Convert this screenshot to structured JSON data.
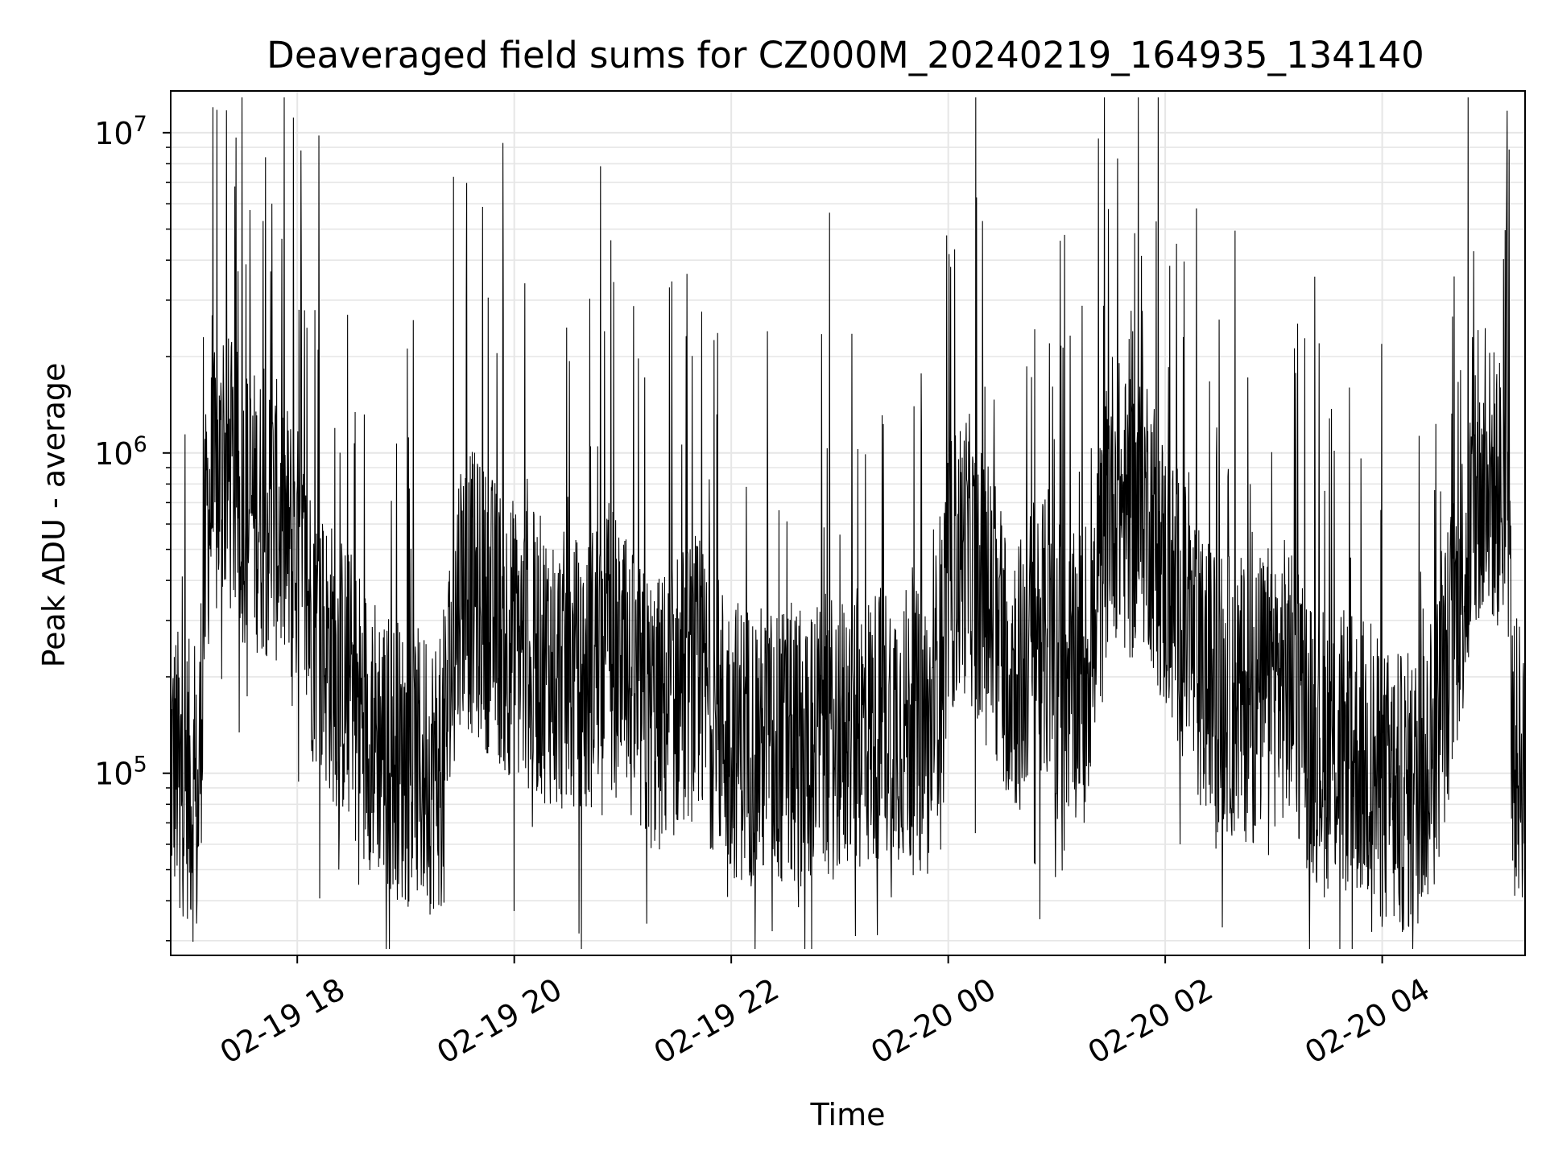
{
  "chart_data": {
    "type": "line",
    "title": "Deaveraged field sums for CZ000M_20240219_164935_134140",
    "xlabel": "Time",
    "ylabel": "Peak ADU - average",
    "y_scale": "log",
    "xlim": [
      "2024-02-19T16:50",
      "2024-02-20T05:19"
    ],
    "ylim": [
      27000,
      13500000
    ],
    "grid": true,
    "legend": "none",
    "line_color": "#000000",
    "grid_color": "#e6e6e6",
    "x_ticks": [
      {
        "value": "2024-02-19T18:00",
        "label": "02-19 18"
      },
      {
        "value": "2024-02-19T20:00",
        "label": "02-19 20"
      },
      {
        "value": "2024-02-19T22:00",
        "label": "02-19 22"
      },
      {
        "value": "2024-02-20T00:00",
        "label": "02-20 00"
      },
      {
        "value": "2024-02-20T02:00",
        "label": "02-20 02"
      },
      {
        "value": "2024-02-20T04:00",
        "label": "02-20 04"
      }
    ],
    "y_ticks": [
      {
        "value": 100000,
        "base": "10",
        "exp": "5"
      },
      {
        "value": 1000000,
        "base": "10",
        "exp": "6"
      },
      {
        "value": 10000000,
        "base": "10",
        "exp": "7"
      }
    ],
    "series": [
      {
        "points": [
          [
            "2024-02-19T16:50",
            110000
          ],
          [
            "2024-02-19T17:00",
            95000
          ],
          [
            "2024-02-19T17:05",
            70000
          ],
          [
            "2024-02-19T17:10",
            650000
          ],
          [
            "2024-02-19T17:20",
            900000
          ],
          [
            "2024-02-19T17:30",
            700000
          ],
          [
            "2024-02-19T17:40",
            650000
          ],
          [
            "2024-02-19T17:50",
            600000
          ],
          [
            "2024-02-19T18:00",
            450000
          ],
          [
            "2024-02-19T18:10",
            280000
          ],
          [
            "2024-02-19T18:20",
            220000
          ],
          [
            "2024-02-19T18:30",
            180000
          ],
          [
            "2024-02-19T18:40",
            140000
          ],
          [
            "2024-02-19T18:50",
            120000
          ],
          [
            "2024-02-19T19:00",
            105000
          ],
          [
            "2024-02-19T19:10",
            100000
          ],
          [
            "2024-02-19T19:20",
            105000
          ],
          [
            "2024-02-19T19:30",
            400000
          ],
          [
            "2024-02-19T19:40",
            350000
          ],
          [
            "2024-02-19T19:50",
            300000
          ],
          [
            "2024-02-19T20:00",
            260000
          ],
          [
            "2024-02-19T20:10",
            240000
          ],
          [
            "2024-02-19T20:20",
            220000
          ],
          [
            "2024-02-19T20:30",
            200000
          ],
          [
            "2024-02-19T20:40",
            190000
          ],
          [
            "2024-02-19T20:50",
            300000
          ],
          [
            "2024-02-19T21:00",
            200000
          ],
          [
            "2024-02-19T21:10",
            160000
          ],
          [
            "2024-02-19T21:20",
            150000
          ],
          [
            "2024-02-19T21:30",
            180000
          ],
          [
            "2024-02-19T21:40",
            200000
          ],
          [
            "2024-02-19T21:50",
            160000
          ],
          [
            "2024-02-19T22:00",
            130000
          ],
          [
            "2024-02-19T22:10",
            125000
          ],
          [
            "2024-02-19T22:20",
            120000
          ],
          [
            "2024-02-19T22:30",
            120000
          ],
          [
            "2024-02-19T22:40",
            125000
          ],
          [
            "2024-02-19T22:50",
            130000
          ],
          [
            "2024-02-19T23:00",
            130000
          ],
          [
            "2024-02-19T23:10",
            135000
          ],
          [
            "2024-02-19T23:20",
            140000
          ],
          [
            "2024-02-19T23:30",
            150000
          ],
          [
            "2024-02-19T23:40",
            135000
          ],
          [
            "2024-02-19T23:50",
            130000
          ],
          [
            "2024-02-20T00:00",
            400000
          ],
          [
            "2024-02-20T00:10",
            500000
          ],
          [
            "2024-02-20T00:20",
            350000
          ],
          [
            "2024-02-20T00:30",
            250000
          ],
          [
            "2024-02-20T00:40",
            200000
          ],
          [
            "2024-02-20T00:50",
            300000
          ],
          [
            "2024-02-20T01:00",
            200000
          ],
          [
            "2024-02-20T01:10",
            200000
          ],
          [
            "2024-02-20T01:20",
            250000
          ],
          [
            "2024-02-20T01:30",
            800000
          ],
          [
            "2024-02-20T01:40",
            600000
          ],
          [
            "2024-02-20T01:50",
            700000
          ],
          [
            "2024-02-20T02:00",
            400000
          ],
          [
            "2024-02-20T02:10",
            300000
          ],
          [
            "2024-02-20T02:20",
            200000
          ],
          [
            "2024-02-20T02:30",
            180000
          ],
          [
            "2024-02-20T02:40",
            170000
          ],
          [
            "2024-02-20T02:50",
            170000
          ],
          [
            "2024-02-20T03:00",
            190000
          ],
          [
            "2024-02-20T03:10",
            200000
          ],
          [
            "2024-02-20T03:20",
            130000
          ],
          [
            "2024-02-20T03:30",
            120000
          ],
          [
            "2024-02-20T03:40",
            115000
          ],
          [
            "2024-02-20T03:50",
            110000
          ],
          [
            "2024-02-20T04:00",
            90000
          ],
          [
            "2024-02-20T04:10",
            85000
          ],
          [
            "2024-02-20T04:20",
            90000
          ],
          [
            "2024-02-20T04:30",
            130000
          ],
          [
            "2024-02-20T04:40",
            300000
          ],
          [
            "2024-02-20T04:50",
            600000
          ],
          [
            "2024-02-20T05:00",
            800000
          ],
          [
            "2024-02-20T05:10",
            700000
          ],
          [
            "2024-02-20T05:12",
            110000
          ],
          [
            "2024-02-20T05:19",
            110000
          ]
        ]
      }
    ],
    "peaks": [
      [
        "2024-02-19T17:41",
        5300000
      ],
      [
        "2024-02-19T17:46",
        6000000
      ],
      [
        "2024-02-19T18:01",
        2800000
      ],
      [
        "2024-02-19T18:02",
        8800000
      ],
      [
        "2024-02-19T18:12",
        9800000
      ],
      [
        "2024-02-19T17:08",
        2300000
      ],
      [
        "2024-02-19T20:50",
        2400000
      ],
      [
        "2024-02-19T22:20",
        2400000
      ],
      [
        "2024-02-19T22:50",
        2350000
      ],
      [
        "2024-02-20T00:56",
        2200000
      ],
      [
        "2024-02-20T01:42",
        2400000
      ],
      [
        "2024-02-20T02:10",
        2300000
      ],
      [
        "2024-02-20T03:25",
        2200000
      ],
      [
        "2024-02-20T04:50",
        2300000
      ],
      [
        "2024-02-20T05:10",
        2900000
      ]
    ],
    "troughs": [
      [
        "2024-02-19T16:55",
        38000
      ],
      [
        "2024-02-19T17:00",
        58000
      ],
      [
        "2024-02-20T00:48",
        52000
      ],
      [
        "2024-02-20T00:15",
        65000
      ],
      [
        "2024-02-20T04:30",
        58000
      ],
      [
        "2024-02-19T19:05",
        63000
      ],
      [
        "2024-02-19T20:10",
        68000
      ],
      [
        "2024-02-19T23:30",
        66000
      ],
      [
        "2024-02-20T03:40",
        63000
      ]
    ]
  }
}
